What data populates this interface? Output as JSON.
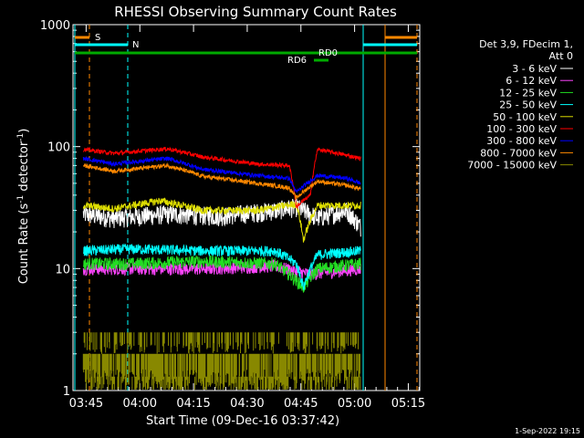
{
  "chart_data": {
    "type": "line",
    "title": "RHESSI Observing Summary Count Rates",
    "xlabel": "Start Time (09-Dec-16 03:37:42)",
    "ylabel_main": "Count Rate (s",
    "ylabel_exp1": "-1",
    "ylabel_mid": " detector",
    "ylabel_exp2": "-1",
    "ylabel_end": ")",
    "yscale": "log",
    "ylim": [
      1,
      1000
    ],
    "xlim_minutes": [
      3.63,
      100.5
    ],
    "x_unit": "minutes after 03:37:42",
    "x_ticks": [
      {
        "label": "03:45",
        "minute": 7.3
      },
      {
        "label": "04:00",
        "minute": 22.3
      },
      {
        "label": "04:15",
        "minute": 37.3
      },
      {
        "label": "04:30",
        "minute": 52.3
      },
      {
        "label": "04:45",
        "minute": 67.3
      },
      {
        "label": "05:00",
        "minute": 82.3
      },
      {
        "label": "05:15",
        "minute": 97.3
      }
    ],
    "y_ticks": [
      {
        "label": "1",
        "value": 1
      },
      {
        "label": "10",
        "value": 10
      },
      {
        "label": "100",
        "value": 100
      },
      {
        "label": "1000",
        "value": 1000
      }
    ],
    "legend_header": [
      "Det 3,9, FDecim 1,",
      "Att 0"
    ],
    "series": [
      {
        "name": "3 - 6 keV",
        "color": "#ffffff",
        "values": [
          [
            6.5,
            28
          ],
          [
            15,
            26
          ],
          [
            30,
            28
          ],
          [
            45,
            27
          ],
          [
            60,
            30
          ],
          [
            66,
            32
          ],
          [
            72,
            26
          ],
          [
            80,
            30
          ],
          [
            84,
            22
          ]
        ]
      },
      {
        "name": "6 - 12 keV",
        "color": "#ff44ff",
        "values": [
          [
            6.5,
            10
          ],
          [
            20,
            10
          ],
          [
            40,
            10
          ],
          [
            60,
            10.5
          ],
          [
            66,
            9.5
          ],
          [
            70,
            9
          ],
          [
            84,
            10
          ]
        ]
      },
      {
        "name": "12 - 25 keV",
        "color": "#22dd22",
        "values": [
          [
            6.5,
            11
          ],
          [
            20,
            11
          ],
          [
            40,
            11.5
          ],
          [
            60,
            11
          ],
          [
            66,
            8
          ],
          [
            68,
            7
          ],
          [
            72,
            10
          ],
          [
            84,
            11
          ]
        ]
      },
      {
        "name": "25 - 50 keV",
        "color": "#00ffff",
        "values": [
          [
            6.5,
            14
          ],
          [
            20,
            14.5
          ],
          [
            40,
            14
          ],
          [
            60,
            14
          ],
          [
            66,
            11
          ],
          [
            68,
            7
          ],
          [
            72,
            13
          ],
          [
            84,
            14
          ]
        ]
      },
      {
        "name": "50 - 100 keV",
        "color": "#dddd00",
        "values": [
          [
            6.5,
            33
          ],
          [
            15,
            31
          ],
          [
            28,
            36
          ],
          [
            40,
            30
          ],
          [
            55,
            30
          ],
          [
            66,
            34
          ],
          [
            68,
            17
          ],
          [
            72,
            33
          ],
          [
            84,
            33
          ]
        ]
      },
      {
        "name": "100 - 300 keV",
        "color": "#ff0000",
        "values": [
          [
            6.5,
            95
          ],
          [
            15,
            88
          ],
          [
            30,
            96
          ],
          [
            40,
            82
          ],
          [
            55,
            72
          ],
          [
            64,
            70
          ],
          [
            66,
            32
          ],
          [
            70,
            40
          ],
          [
            72,
            95
          ],
          [
            80,
            85
          ],
          [
            84,
            80
          ]
        ]
      },
      {
        "name": "300 - 800 keV",
        "color": "#0000ff",
        "values": [
          [
            6.5,
            80
          ],
          [
            15,
            72
          ],
          [
            30,
            80
          ],
          [
            40,
            65
          ],
          [
            55,
            58
          ],
          [
            64,
            55
          ],
          [
            66,
            42
          ],
          [
            72,
            58
          ],
          [
            80,
            55
          ],
          [
            84,
            50
          ]
        ]
      },
      {
        "name": "800 - 7000 keV",
        "color": "#ff8800",
        "values": [
          [
            6.5,
            70
          ],
          [
            15,
            63
          ],
          [
            30,
            70
          ],
          [
            40,
            57
          ],
          [
            55,
            50
          ],
          [
            64,
            46
          ],
          [
            66,
            38
          ],
          [
            72,
            52
          ],
          [
            80,
            48
          ],
          [
            84,
            45
          ]
        ]
      },
      {
        "name": "7000 - 15000 keV",
        "color": "#888800",
        "values": [
          [
            6.5,
            2
          ],
          [
            20,
            2.5
          ],
          [
            40,
            2.2
          ],
          [
            60,
            2.6
          ],
          [
            84,
            2.1
          ]
        ]
      }
    ],
    "markers": [
      {
        "label": "S",
        "color": "#ff8800"
      },
      {
        "label": "N",
        "color": "#00ffff"
      },
      {
        "label": "RD0",
        "color": "#00aa00"
      },
      {
        "label": "RD6",
        "color": "#00aa00"
      }
    ],
    "grid": false,
    "legend_position": "right"
  },
  "footer": {
    "timestamp": "1-Sep-2022 19:15"
  }
}
